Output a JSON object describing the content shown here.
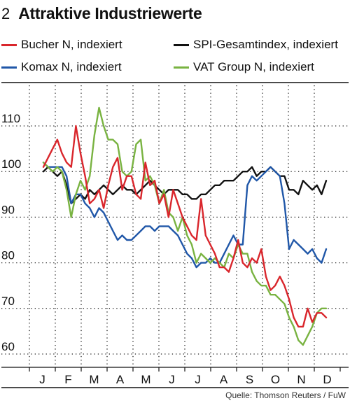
{
  "header": {
    "number": "2",
    "title": "Attraktive Industriewerte"
  },
  "source": "Quelle: Thomson Reuters / FuW",
  "chart_data": {
    "type": "line",
    "title": "Attraktive Industriewerte",
    "x_labels": [
      "J",
      "F",
      "M",
      "A",
      "M",
      "J",
      "J",
      "A",
      "S",
      "O",
      "N",
      "D"
    ],
    "y_ticks": [
      60,
      70,
      80,
      90,
      100,
      110
    ],
    "ylim": [
      58,
      117
    ],
    "grid": true,
    "legend_position": "top",
    "series": [
      {
        "name": "Bucher N, indexiert",
        "color": "#d9262c",
        "values": [
          101,
          103,
          105,
          107,
          104,
          102,
          101,
          110,
          104,
          99,
          93,
          94,
          96,
          92,
          97,
          101,
          103,
          96,
          99,
          99,
          95,
          94,
          102,
          97,
          98,
          93,
          95,
          90,
          96,
          93,
          90,
          88,
          86,
          85,
          94,
          86,
          84,
          82,
          79,
          79,
          78,
          81,
          85,
          80,
          79,
          81,
          80,
          83,
          77,
          74,
          75,
          77,
          75,
          72,
          68,
          66,
          66,
          70,
          67,
          69,
          69,
          68
        ]
      },
      {
        "name": "SPI-Gesamtindex, indexiert",
        "color": "#111111",
        "values": [
          100,
          101,
          100,
          99,
          100,
          97,
          93,
          94,
          95,
          94,
          96,
          95,
          96,
          97,
          96,
          95,
          96,
          97,
          96,
          96,
          95,
          96,
          97,
          98,
          97,
          96,
          95,
          96,
          96,
          96,
          95,
          95,
          94,
          94,
          95,
          95,
          96,
          97,
          97,
          98,
          98,
          98,
          99,
          100,
          100,
          101,
          99,
          100,
          100,
          101,
          100,
          99,
          99,
          96,
          96,
          95,
          98,
          97,
          96,
          97,
          95,
          98
        ]
      },
      {
        "name": "Komax N, indexiert",
        "color": "#2057a8",
        "values": [
          102,
          101,
          101,
          101,
          101,
          99,
          93,
          95,
          95,
          93,
          92,
          90,
          92,
          91,
          89,
          87,
          85,
          86,
          85,
          85,
          86,
          87,
          88,
          88,
          87,
          88,
          88,
          88,
          87,
          86,
          84,
          82,
          81,
          79,
          80,
          80,
          81,
          80,
          80,
          82,
          84,
          86,
          84,
          84,
          97,
          99,
          98,
          99,
          100,
          101,
          100,
          99,
          93,
          83,
          85,
          84,
          83,
          82,
          83,
          81,
          80,
          83
        ]
      },
      {
        "name": "VAT Group N, indexiert",
        "color": "#79b341",
        "values": [
          102,
          101,
          100,
          101,
          100,
          96,
          90,
          95,
          98,
          96,
          99,
          108,
          114,
          110,
          107,
          107,
          106,
          100,
          99,
          100,
          106,
          107,
          98,
          99,
          97,
          93,
          96,
          91,
          90,
          87,
          90,
          86,
          84,
          80,
          82,
          81,
          80,
          81,
          80,
          79,
          82,
          81,
          84,
          82,
          82,
          78,
          76,
          75,
          75,
          73,
          73,
          72,
          71,
          68,
          66,
          63,
          62,
          64,
          66,
          69,
          70,
          70
        ]
      }
    ]
  }
}
